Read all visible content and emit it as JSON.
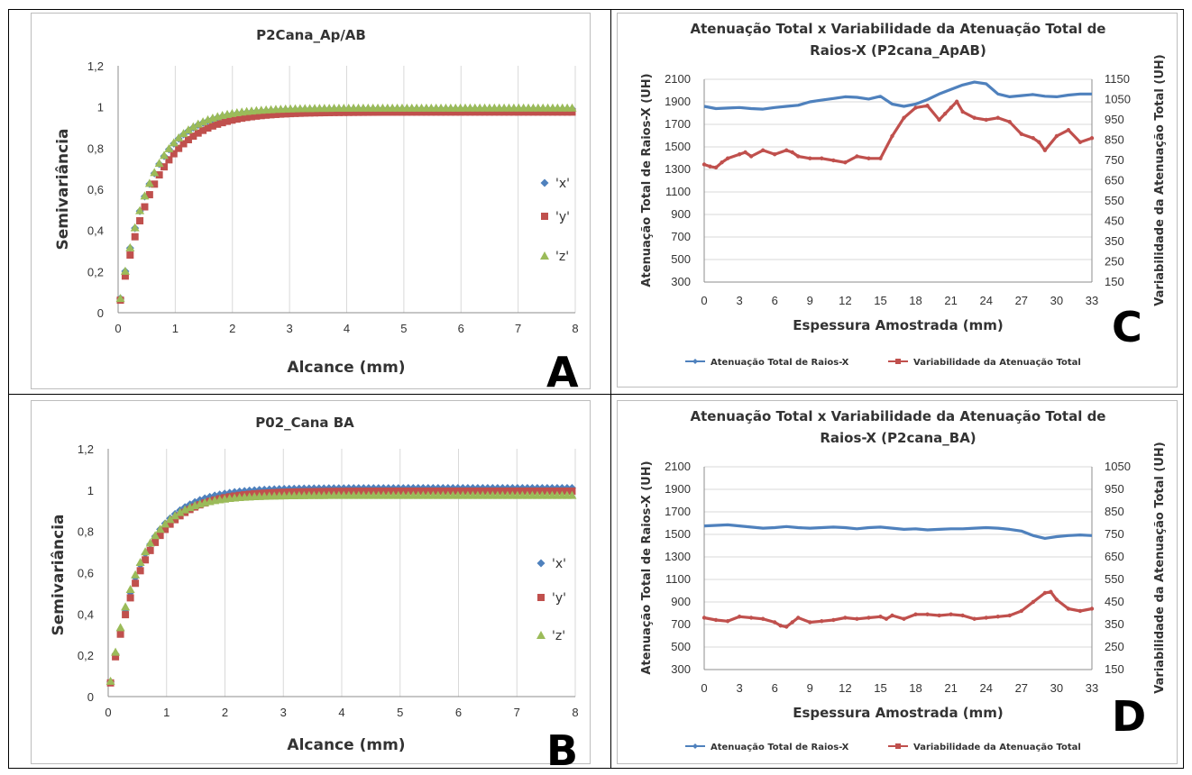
{
  "panels": {
    "A": "A",
    "B": "B",
    "C": "C",
    "D": "D"
  },
  "chart_data": [
    {
      "id": "A",
      "type": "scatter",
      "title": "P2Cana_Ap/AB",
      "xlabel": "Alcance (mm)",
      "ylabel": "Semivariância",
      "xlim": [
        0,
        8
      ],
      "ylim": [
        0,
        1.2
      ],
      "x_ticks": [
        "0",
        "1",
        "2",
        "3",
        "4",
        "5",
        "6",
        "7",
        "8"
      ],
      "y_ticks": [
        "0",
        "0,2",
        "0,4",
        "0,6",
        "0,8",
        "1",
        "1,2"
      ],
      "grid": "vertical",
      "legend_position": "right",
      "series": [
        {
          "name": "'x'",
          "color": "#4f81bd",
          "marker": "diamond",
          "sill": 0.99,
          "range": 0.55
        },
        {
          "name": "'y'",
          "color": "#c0504d",
          "marker": "square",
          "sill": 0.975,
          "range": 0.62
        },
        {
          "name": "'z'",
          "color": "#9bbb59",
          "marker": "triangle",
          "sill": 0.995,
          "range": 0.55
        }
      ]
    },
    {
      "id": "B",
      "type": "scatter",
      "title": "P02_Cana BA",
      "xlabel": "Alcance (mm)",
      "ylabel": "Semivariância",
      "xlim": [
        0,
        8
      ],
      "ylim": [
        0,
        1.2
      ],
      "x_ticks": [
        "0",
        "1",
        "2",
        "3",
        "4",
        "5",
        "6",
        "7",
        "8"
      ],
      "y_ticks": [
        "0",
        "0,2",
        "0,4",
        "0,6",
        "0,8",
        "1",
        "1,2"
      ],
      "grid": "vertical",
      "legend_position": "right",
      "series": [
        {
          "name": "'x'",
          "color": "#4f81bd",
          "marker": "diamond",
          "sill": 1.01,
          "range": 0.55
        },
        {
          "name": "'y'",
          "color": "#c0504d",
          "marker": "square",
          "sill": 0.995,
          "range": 0.58
        },
        {
          "name": "'z'",
          "color": "#9bbb59",
          "marker": "triangle",
          "sill": 0.975,
          "range": 0.5
        }
      ]
    },
    {
      "id": "C",
      "type": "line",
      "title": "Atenuação Total  x Variabilidade da Atenuação Total de Raios-X    (P2cana_ApAB)",
      "title_lines": [
        "Atenuação Total  x Variabilidade da Atenuação Total de",
        "Raios-X    (P2cana_ApAB)"
      ],
      "xlabel": "Espessura Amostrada  (mm)",
      "ylabel_left": "Atenuação Total de Raios-X  (UH)",
      "ylabel_right": "Variabilidade da Atenuação Total  (UH)",
      "xlim": [
        0,
        33
      ],
      "ylim_left": [
        300,
        2100
      ],
      "ylim_right": [
        150,
        1150
      ],
      "x_ticks": [
        "0",
        "3",
        "6",
        "9",
        "12",
        "15",
        "18",
        "21",
        "24",
        "27",
        "30",
        "33"
      ],
      "y_ticks_left": [
        "300",
        "500",
        "700",
        "900",
        "1100",
        "1300",
        "1500",
        "1700",
        "1900",
        "2100"
      ],
      "y_ticks_right": [
        "150",
        "250",
        "350",
        "450",
        "550",
        "650",
        "750",
        "850",
        "950",
        "1050",
        "1150"
      ],
      "grid": "horizontal",
      "legend_position": "bottom",
      "series": [
        {
          "name": "Atenuação Total de Raios-X",
          "axis": "left",
          "color": "#4f81bd",
          "x": [
            0,
            1,
            2,
            3,
            4,
            5,
            6,
            7,
            8,
            9,
            10,
            11,
            12,
            13,
            14,
            15,
            16,
            17,
            18,
            19,
            20,
            21,
            22,
            23,
            24,
            25,
            26,
            27,
            28,
            29,
            30,
            31,
            32,
            33
          ],
          "y": [
            1860,
            1840,
            1845,
            1850,
            1840,
            1835,
            1850,
            1860,
            1870,
            1900,
            1915,
            1930,
            1945,
            1940,
            1925,
            1950,
            1880,
            1860,
            1880,
            1920,
            1970,
            2010,
            2050,
            2075,
            2060,
            1970,
            1945,
            1955,
            1965,
            1950,
            1945,
            1960,
            1970,
            1970
          ]
        },
        {
          "name": "Variabilidade da Atenuação Total",
          "axis": "right",
          "color": "#c0504d",
          "x": [
            0,
            0.5,
            1,
            1.5,
            2,
            3,
            3.5,
            4,
            5,
            6,
            7,
            7.5,
            8,
            9,
            10,
            11,
            12,
            13,
            14,
            15,
            16,
            17,
            18,
            19,
            20,
            20.5,
            21,
            21.5,
            22,
            23,
            24,
            25,
            26,
            27,
            28,
            28.5,
            29,
            30,
            31,
            32,
            33
          ],
          "y": [
            730,
            720,
            715,
            740,
            760,
            780,
            790,
            770,
            800,
            780,
            800,
            790,
            770,
            760,
            760,
            750,
            740,
            770,
            760,
            760,
            870,
            960,
            1010,
            1020,
            950,
            980,
            1010,
            1040,
            990,
            960,
            950,
            960,
            940,
            880,
            860,
            840,
            800,
            870,
            900,
            840,
            860
          ]
        }
      ]
    },
    {
      "id": "D",
      "type": "line",
      "title": "Atenuação Total  x Variabilidade da Atenuação Total de Raios-X    (P2cana_BA)",
      "title_lines": [
        "Atenuação Total  x Variabilidade da Atenuação Total de",
        "Raios-X    (P2cana_BA)"
      ],
      "xlabel": "Espessura Amostrada  (mm)",
      "ylabel_left": "Atenuação Total de Raios-X  (UH)",
      "ylabel_right": "Variabilidade da Atenuação Total  (UH)",
      "xlim": [
        0,
        33
      ],
      "ylim_left": [
        300,
        2100
      ],
      "ylim_right": [
        150,
        1050
      ],
      "x_ticks": [
        "0",
        "3",
        "6",
        "9",
        "12",
        "15",
        "18",
        "21",
        "24",
        "27",
        "30",
        "33"
      ],
      "y_ticks_left": [
        "300",
        "500",
        "700",
        "900",
        "1100",
        "1300",
        "1500",
        "1700",
        "1900",
        "2100"
      ],
      "y_ticks_right": [
        "150",
        "250",
        "350",
        "450",
        "550",
        "650",
        "750",
        "850",
        "950",
        "1050"
      ],
      "grid": "horizontal",
      "legend_position": "bottom",
      "series": [
        {
          "name": "Atenuação Total de Raios-X",
          "axis": "left",
          "color": "#4f81bd",
          "x": [
            0,
            1,
            2,
            3,
            4,
            5,
            6,
            7,
            8,
            9,
            10,
            11,
            12,
            13,
            14,
            15,
            16,
            17,
            18,
            19,
            20,
            21,
            22,
            23,
            24,
            25,
            26,
            27,
            28,
            29,
            30,
            31,
            32,
            33
          ],
          "y": [
            1575,
            1580,
            1585,
            1575,
            1565,
            1555,
            1560,
            1570,
            1560,
            1555,
            1560,
            1565,
            1560,
            1550,
            1560,
            1565,
            1555,
            1545,
            1550,
            1540,
            1545,
            1550,
            1550,
            1555,
            1560,
            1555,
            1545,
            1530,
            1490,
            1465,
            1480,
            1490,
            1495,
            1490
          ]
        },
        {
          "name": "Variabilidade da Atenuação Total",
          "axis": "right",
          "color": "#c0504d",
          "x": [
            0,
            1,
            2,
            3,
            4,
            5,
            6,
            6.5,
            7,
            7.5,
            8,
            9,
            10,
            11,
            12,
            13,
            14,
            15,
            15.5,
            16,
            17,
            18,
            19,
            20,
            21,
            22,
            23,
            24,
            25,
            26,
            27,
            28,
            29,
            29.5,
            30,
            31,
            32,
            33
          ],
          "y": [
            380,
            370,
            365,
            385,
            380,
            375,
            360,
            345,
            340,
            360,
            380,
            360,
            365,
            370,
            380,
            375,
            380,
            385,
            375,
            390,
            375,
            395,
            395,
            390,
            395,
            390,
            375,
            380,
            385,
            390,
            410,
            450,
            490,
            495,
            460,
            420,
            410,
            420
          ]
        }
      ]
    }
  ]
}
